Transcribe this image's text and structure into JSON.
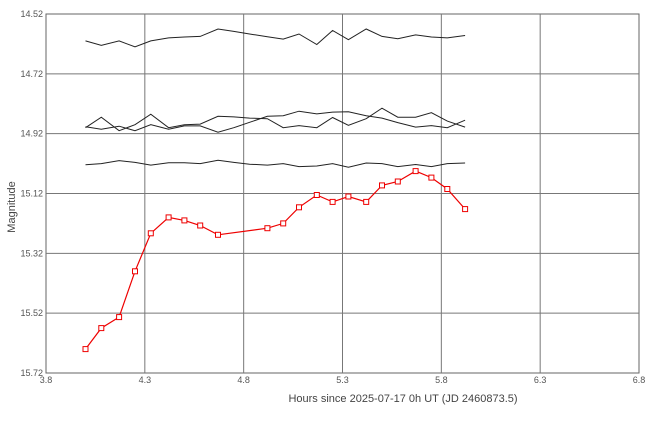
{
  "chart_data": {
    "type": "line",
    "title": "",
    "xlabel": "Hours since 2025-07-17 0h UT (JD 2460873.5)",
    "ylabel": "Magnitude",
    "xlim": [
      3.8,
      6.8
    ],
    "ylim": [
      14.52,
      15.72
    ],
    "y_inverted": true,
    "grid": true,
    "legend": "none",
    "x_ticks": [
      "3.8",
      "4.3",
      "4.8",
      "5.3",
      "5.8",
      "6.3",
      "6.8"
    ],
    "y_ticks": [
      "14.52",
      "14.72",
      "14.92",
      "15.12",
      "15.32",
      "15.52",
      "15.72"
    ],
    "series": [
      {
        "color": "#222222",
        "marker": "none",
        "x": [
          4.0,
          4.08,
          4.17,
          4.25,
          4.33,
          4.42,
          4.5,
          4.58,
          4.67,
          4.75,
          4.83,
          4.92,
          5.0,
          5.08,
          5.17,
          5.25,
          5.33,
          5.42,
          5.5,
          5.58,
          5.67,
          5.75,
          5.83,
          5.92
        ],
        "y": [
          14.61,
          14.625,
          14.61,
          14.63,
          14.61,
          14.6,
          14.597,
          14.595,
          14.57,
          14.578,
          14.587,
          14.596,
          14.604,
          14.587,
          14.622,
          14.575,
          14.606,
          14.57,
          14.595,
          14.603,
          14.59,
          14.597,
          14.6,
          14.592
        ]
      },
      {
        "color": "#222222",
        "marker": "none",
        "x": [
          4.0,
          4.08,
          4.17,
          4.25,
          4.33,
          4.42,
          4.5,
          4.58,
          4.67,
          4.75,
          4.83,
          4.92,
          5.0,
          5.08,
          5.17,
          5.25,
          5.33,
          5.42,
          5.5,
          5.58,
          5.67,
          5.75,
          5.83,
          5.92
        ],
        "y": [
          14.9,
          14.865,
          14.91,
          14.89,
          14.855,
          14.9,
          14.89,
          14.888,
          14.862,
          14.864,
          14.868,
          14.87,
          14.9,
          14.893,
          14.9,
          14.866,
          14.892,
          14.87,
          14.835,
          14.865,
          14.865,
          14.85,
          14.878,
          14.898
        ]
      },
      {
        "color": "#222222",
        "marker": "none",
        "x": [
          4.0,
          4.08,
          4.17,
          4.25,
          4.33,
          4.42,
          4.5,
          4.58,
          4.67,
          4.75,
          4.83,
          4.92,
          5.0,
          5.08,
          5.17,
          5.25,
          5.33,
          5.42,
          5.5,
          5.58,
          5.67,
          5.75,
          5.83,
          5.92
        ],
        "y": [
          14.897,
          14.905,
          14.895,
          14.91,
          14.89,
          14.905,
          14.894,
          14.894,
          14.915,
          14.9,
          14.882,
          14.862,
          14.86,
          14.845,
          14.854,
          14.848,
          14.847,
          14.86,
          14.868,
          14.883,
          14.898,
          14.893,
          14.9,
          14.875
        ]
      },
      {
        "color": "#222222",
        "marker": "none",
        "x": [
          4.0,
          4.08,
          4.17,
          4.25,
          4.33,
          4.42,
          4.5,
          4.58,
          4.67,
          4.75,
          4.83,
          4.92,
          5.0,
          5.08,
          5.17,
          5.25,
          5.33,
          5.42,
          5.5,
          5.58,
          5.67,
          5.75,
          5.83,
          5.92
        ],
        "y": [
          15.024,
          15.02,
          15.01,
          15.016,
          15.025,
          15.017,
          15.017,
          15.02,
          15.009,
          15.016,
          15.022,
          15.025,
          15.02,
          15.03,
          15.028,
          15.02,
          15.032,
          15.018,
          15.02,
          15.03,
          15.023,
          15.03,
          15.02,
          15.018
        ]
      },
      {
        "color": "#ee0000",
        "marker": "square",
        "x": [
          4.0,
          4.08,
          4.17,
          4.25,
          4.33,
          4.42,
          4.5,
          4.58,
          4.67,
          4.92,
          5.0,
          5.08,
          5.17,
          5.25,
          5.33,
          5.42,
          5.5,
          5.58,
          5.67,
          5.75,
          5.83,
          5.92
        ],
        "y": [
          15.64,
          15.57,
          15.533,
          15.38,
          15.253,
          15.2,
          15.21,
          15.227,
          15.258,
          15.236,
          15.22,
          15.166,
          15.125,
          15.148,
          15.13,
          15.148,
          15.093,
          15.08,
          15.045,
          15.067,
          15.105,
          15.172
        ]
      }
    ]
  }
}
